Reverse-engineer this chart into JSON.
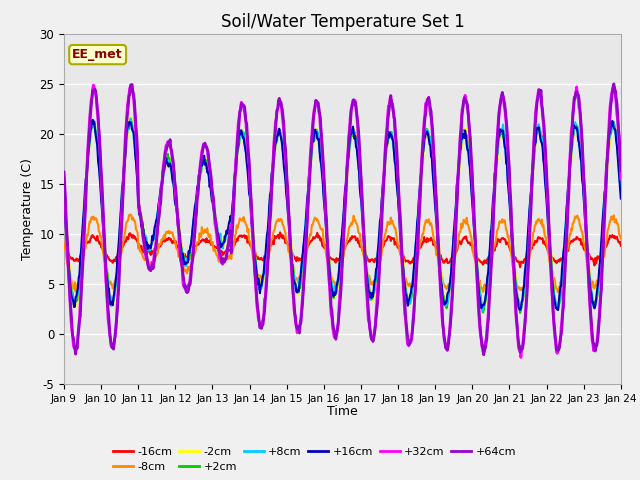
{
  "title": "Soil/Water Temperature Set 1",
  "xlabel": "Time",
  "ylabel": "Temperature (C)",
  "ylim": [
    -5,
    30
  ],
  "fig_bg_color": "#f0f0f0",
  "plot_bg_color": "#e8e8e8",
  "watermark": "EE_met",
  "xtick_labels": [
    "Jan 9",
    "Jan 10",
    "Jan 11",
    "Jan 12",
    "Jan 13",
    "Jan 14",
    "Jan 15",
    "Jan 16",
    "Jan 17",
    "Jan 18",
    "Jan 19",
    "Jan 20",
    "Jan 21",
    "Jan 22",
    "Jan 23",
    "Jan 24"
  ],
  "ytick_values": [
    -5,
    0,
    5,
    10,
    15,
    20,
    25,
    30
  ],
  "series_labels": [
    "-16cm",
    "-8cm",
    "-2cm",
    "+2cm",
    "+8cm",
    "+16cm",
    "+32cm",
    "+64cm"
  ],
  "series_colors": [
    "#ff0000",
    "#ff8800",
    "#ffff00",
    "#00cc00",
    "#00ccff",
    "#0000bb",
    "#ff00ff",
    "#9900cc"
  ],
  "series_linewidths": [
    1.5,
    1.5,
    1.5,
    1.5,
    1.5,
    1.5,
    2.0,
    2.0
  ],
  "series_zorders": [
    3,
    4,
    5,
    6,
    7,
    8,
    9,
    10
  ]
}
